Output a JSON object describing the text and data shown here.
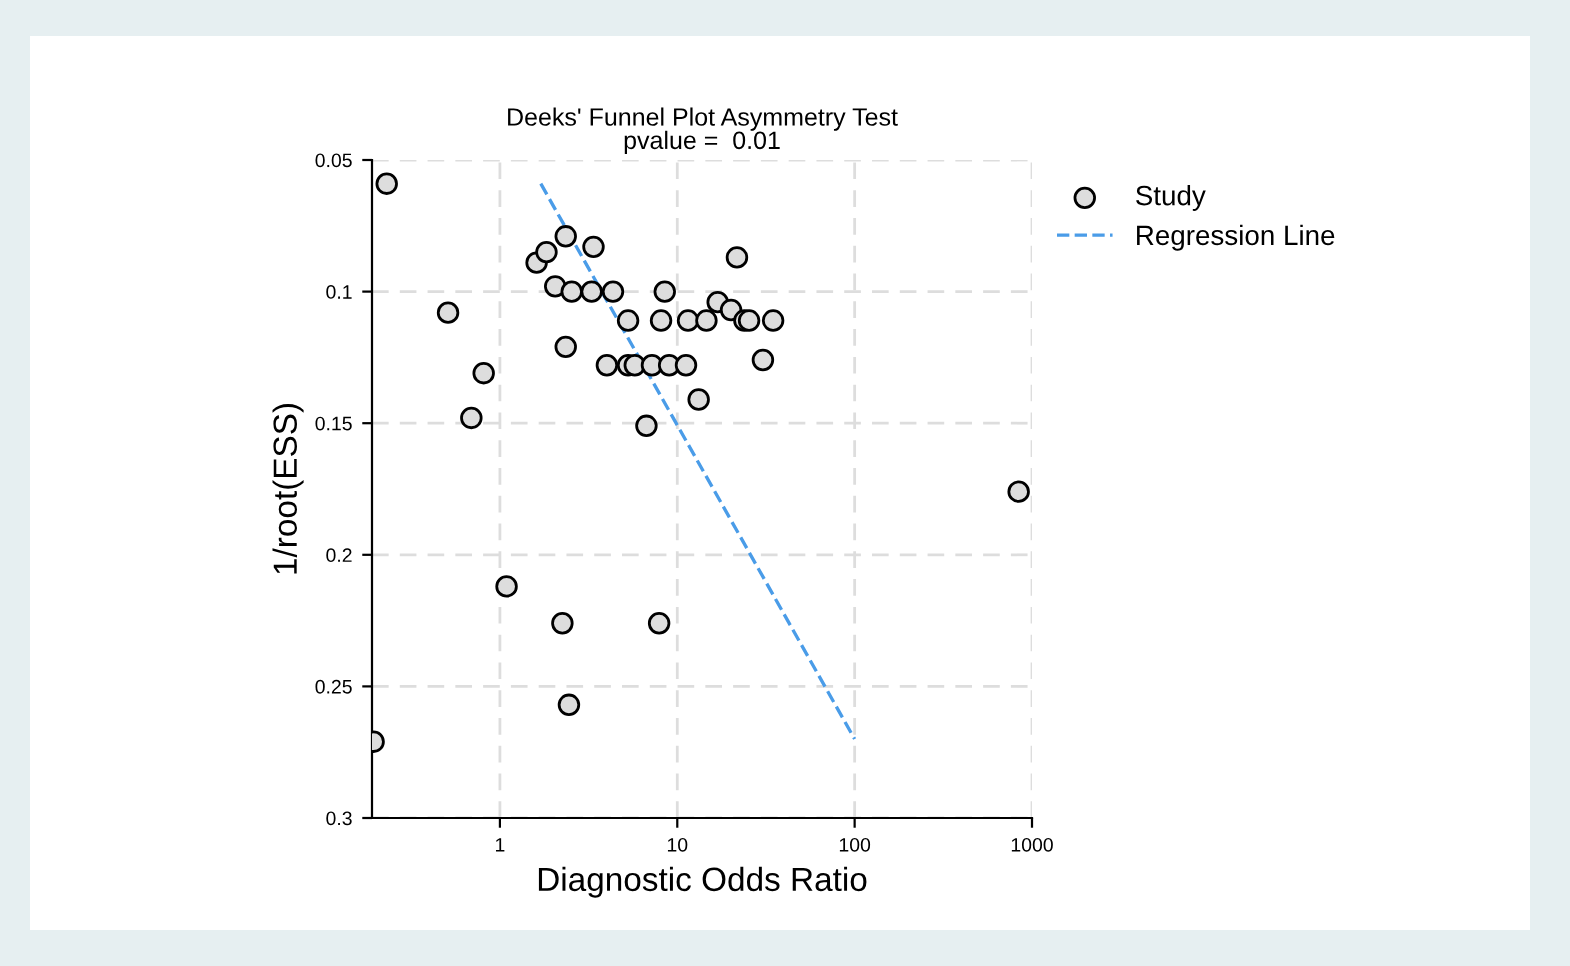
{
  "chart_data": {
    "type": "scatter",
    "title": "Deeks' Funnel Plot Asymmetry Test\npvalue =  0.01",
    "xlabel": "Diagnostic Odds Ratio",
    "ylabel": "1/root(ESS)",
    "log": "x",
    "xlim": [
      0.19,
      1000
    ],
    "xticks": [
      1,
      10,
      100,
      1000
    ],
    "ylim": [
      0.3,
      0.05
    ],
    "yticks": [
      0.05,
      0.1,
      0.15,
      0.2,
      0.25,
      0.3
    ],
    "grid": true,
    "legend": "top right",
    "series": [
      {
        "name": "Study",
        "marker": "circle",
        "color": "#000000",
        "x": [
          0.23,
          1.61,
          1.83,
          2.35,
          3.37,
          21.7,
          0.51,
          0.81,
          0.69,
          2.05,
          2.54,
          3.29,
          4.34,
          2.35,
          8.5,
          5.28,
          8.1,
          11.5,
          14.6,
          16.9,
          20.1,
          23.9,
          25.4,
          34.7,
          30.4,
          4.01,
          5.28,
          5.76,
          7.2,
          9.0,
          11.2,
          13.2,
          6.7,
          1.09,
          2.25,
          7.9,
          2.45,
          0.194,
          841
        ],
        "values": [
          0.059,
          0.089,
          0.085,
          0.079,
          0.083,
          0.087,
          0.108,
          0.131,
          0.148,
          0.098,
          0.1,
          0.1,
          0.1,
          0.121,
          0.1,
          0.111,
          0.111,
          0.111,
          0.111,
          0.104,
          0.107,
          0.111,
          0.111,
          0.111,
          0.126,
          0.128,
          0.128,
          0.128,
          0.128,
          0.128,
          0.128,
          0.141,
          0.151,
          0.212,
          0.226,
          0.226,
          0.257,
          0.271,
          0.176
        ]
      },
      {
        "name": "Regression Line",
        "type": "line",
        "line_style": "dashed",
        "color": "#4a9ce8",
        "x": [
          1.7,
          100
        ],
        "values": [
          0.059,
          0.27
        ]
      }
    ]
  }
}
